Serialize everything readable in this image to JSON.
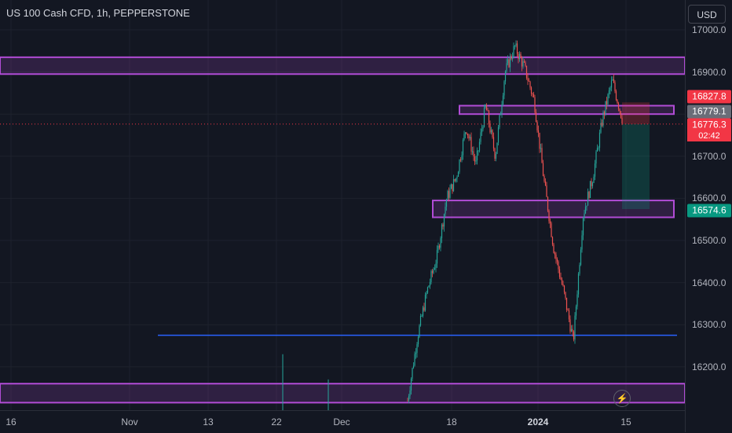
{
  "symbol_title": "US 100 Cash CFD, 1h, PEPPERSTONE",
  "currency_button": "USD",
  "colors": {
    "background": "#131722",
    "up": "#26a69a",
    "down": "#ef5350",
    "zone": "#b14cd6",
    "support_line": "#2962ff",
    "last_price_bg": "#f23645",
    "prev_close_bg": "#6a6d78",
    "target_bg": "#089981"
  },
  "price_labels": {
    "top_red": "16827.8",
    "grey": "16779.1",
    "last": "16776.3",
    "countdown": "02:42",
    "green": "16574.6"
  },
  "lightning_icon": "⚡",
  "chart_data": {
    "type": "candlestick",
    "title": "US 100 Cash CFD, 1h, PEPPERSTONE",
    "yaxis": {
      "range": [
        16115,
        17035
      ],
      "ticks": [
        17000,
        16900,
        16800,
        16700,
        16600,
        16500,
        16400,
        16300,
        16200
      ]
    },
    "xaxis": {
      "ticks": [
        {
          "label": "16",
          "bold": false
        },
        {
          "label": "Nov",
          "bold": false
        },
        {
          "label": "13",
          "bold": false
        },
        {
          "label": "22",
          "bold": false
        },
        {
          "label": "Dec",
          "bold": false
        },
        {
          "label": "18",
          "bold": false
        },
        {
          "label": "2024",
          "bold": true
        },
        {
          "label": "15",
          "bold": false
        }
      ]
    },
    "price_path": [
      [
        "Dec 11",
        16120
      ],
      [
        "Dec 12",
        16270
      ],
      [
        "Dec 13",
        16380
      ],
      [
        "Dec 14",
        16460
      ],
      [
        "Dec 15",
        16600
      ],
      [
        "Dec 18",
        16650
      ],
      [
        "Dec 19",
        16770
      ],
      [
        "Dec 20",
        16680
      ],
      [
        "Dec 21",
        16820
      ],
      [
        "Dec 22",
        16700
      ],
      [
        "Dec 26",
        16900
      ],
      [
        "Dec 27",
        16960
      ],
      [
        "Dec 28",
        16910
      ],
      [
        "Dec 29",
        16830
      ],
      [
        "Jan 2",
        16640
      ],
      [
        "Jan 3",
        16480
      ],
      [
        "Jan 4",
        16380
      ],
      [
        "Jan 5",
        16260
      ],
      [
        "Jan 8",
        16560
      ],
      [
        "Jan 9",
        16650
      ],
      [
        "Jan 10",
        16790
      ],
      [
        "Jan 11",
        16880
      ],
      [
        "Jan 12",
        16790
      ]
    ],
    "zones": [
      {
        "from": 16895,
        "to": 16935
      },
      {
        "from": 16800,
        "to": 16820
      },
      {
        "from": 16555,
        "to": 16595
      },
      {
        "from": 16115,
        "to": 16160
      }
    ],
    "support_level": 16275,
    "last_price": 16776.3,
    "position_tool": {
      "entry": 16776.3,
      "stop": 16827.8,
      "target": 16574.6
    }
  }
}
